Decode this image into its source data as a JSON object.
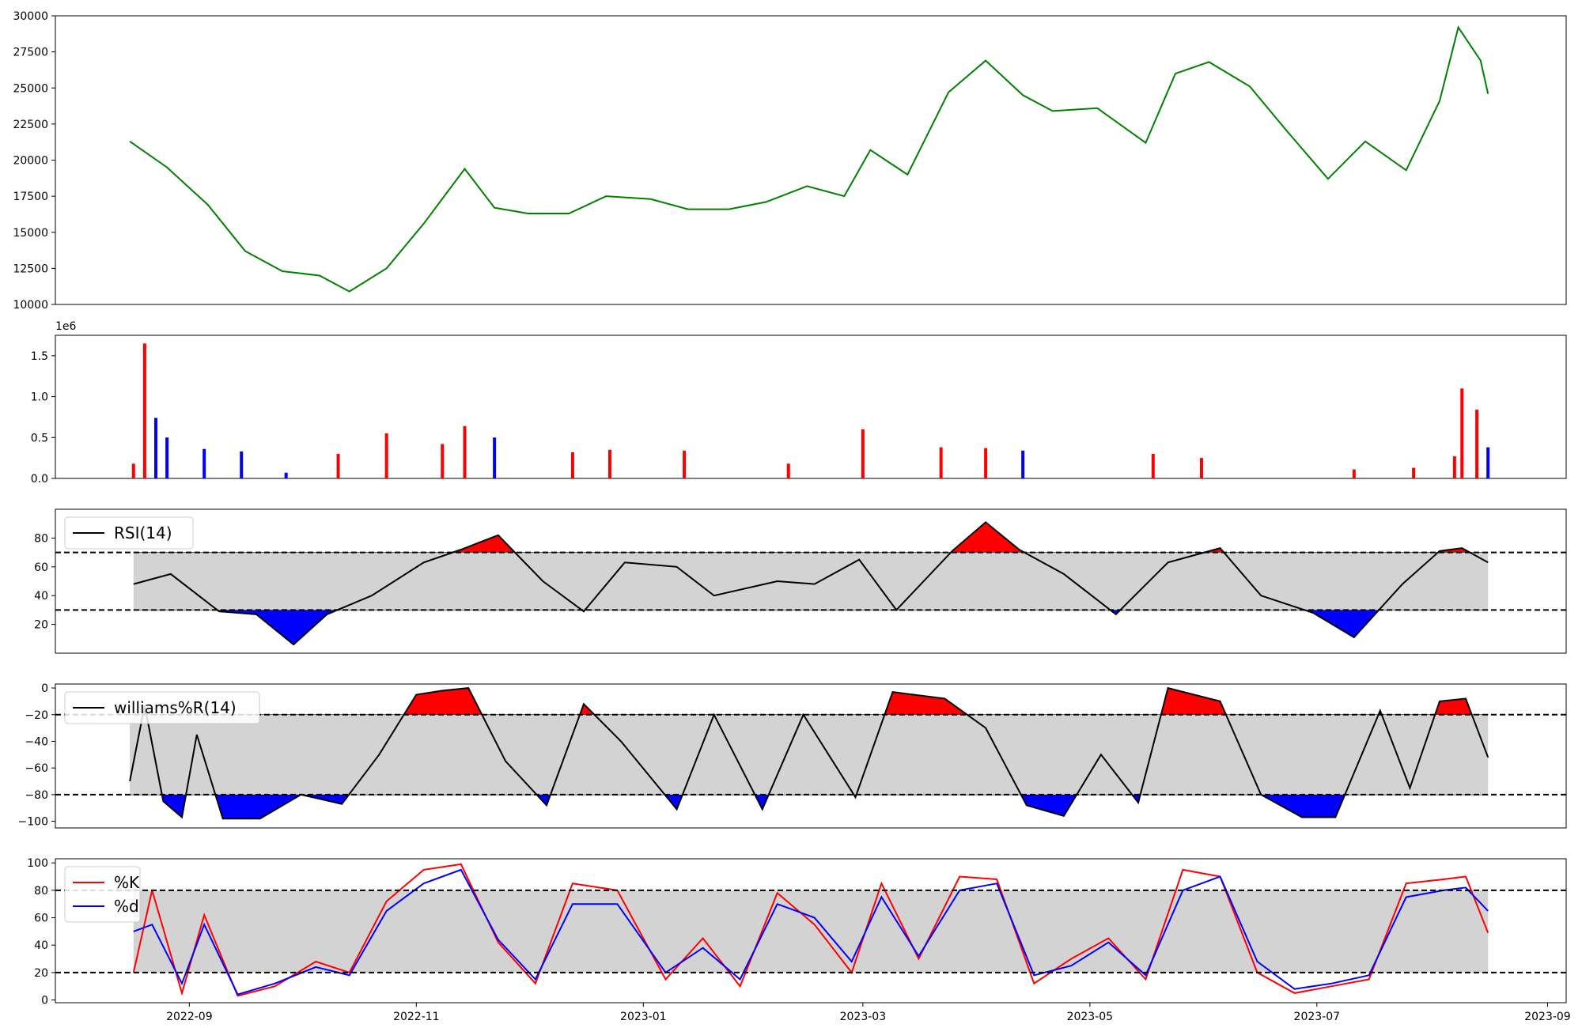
{
  "chart_data": [
    {
      "type": "line",
      "name": "price",
      "color": "#008000",
      "ylim": [
        10000,
        30000
      ],
      "yticks": [
        10000,
        12500,
        15000,
        17500,
        20000,
        22500,
        25000,
        27500,
        30000
      ],
      "x": [
        "2022-08-16",
        "2022-08-26",
        "2022-09-06",
        "2022-09-16",
        "2022-09-26",
        "2022-10-06",
        "2022-10-14",
        "2022-10-24",
        "2022-11-03",
        "2022-11-14",
        "2022-11-22",
        "2022-12-01",
        "2022-12-12",
        "2022-12-22",
        "2023-01-03",
        "2023-01-13",
        "2023-01-24",
        "2023-02-03",
        "2023-02-14",
        "2023-02-24",
        "2023-03-03",
        "2023-03-13",
        "2023-03-24",
        "2023-04-03",
        "2023-04-13",
        "2023-04-21",
        "2023-05-03",
        "2023-05-16",
        "2023-05-24",
        "2023-06-02",
        "2023-06-13",
        "2023-06-23",
        "2023-07-04",
        "2023-07-14",
        "2023-07-25",
        "2023-08-03",
        "2023-08-08",
        "2023-08-14",
        "2023-08-16"
      ],
      "values": [
        21300,
        19500,
        16900,
        13700,
        12300,
        12000,
        10900,
        12500,
        15600,
        19400,
        16700,
        16300,
        16300,
        17500,
        17300,
        16600,
        16600,
        17100,
        18200,
        17500,
        20700,
        19000,
        24700,
        26900,
        24500,
        23400,
        23600,
        21200,
        26000,
        26800,
        25100,
        22000,
        18700,
        21300,
        19300,
        24100,
        29200,
        26900,
        24600
      ]
    },
    {
      "type": "bar",
      "name": "volume",
      "multiplier": "1e6",
      "ylim": [
        0,
        1.75
      ],
      "yticks": [
        0.0,
        0.5,
        1.0,
        1.5
      ],
      "colors": {
        "up": "#ff0000",
        "down": "#0000ff"
      },
      "x": [
        "2022-08-17",
        "2022-08-20",
        "2022-08-23",
        "2022-08-26",
        "2022-09-05",
        "2022-09-15",
        "2022-09-27",
        "2022-10-11",
        "2022-10-24",
        "2022-11-08",
        "2022-11-14",
        "2022-11-22",
        "2022-12-13",
        "2022-12-23",
        "2023-01-12",
        "2023-02-09",
        "2023-03-01",
        "2023-03-22",
        "2023-04-03",
        "2023-04-13",
        "2023-05-18",
        "2023-05-31",
        "2023-07-11",
        "2023-07-27",
        "2023-08-07",
        "2023-08-09",
        "2023-08-13",
        "2023-08-16"
      ],
      "values": [
        0.18,
        1.65,
        0.74,
        0.5,
        0.36,
        0.33,
        0.07,
        0.3,
        0.55,
        0.42,
        0.64,
        0.5,
        0.32,
        0.35,
        0.34,
        0.18,
        0.6,
        0.38,
        0.37,
        0.34,
        0.3,
        0.25,
        0.11,
        0.13,
        0.27,
        1.1,
        0.84,
        0.38
      ],
      "direction": [
        "up",
        "up",
        "down",
        "down",
        "down",
        "down",
        "down",
        "up",
        "up",
        "up",
        "up",
        "down",
        "up",
        "up",
        "up",
        "up",
        "up",
        "up",
        "up",
        "down",
        "up",
        "up",
        "up",
        "up",
        "up",
        "up",
        "up",
        "down"
      ]
    },
    {
      "type": "line",
      "name": "rsi",
      "legend": "RSI(14)",
      "ylim": [
        0,
        100
      ],
      "yticks": [
        20,
        40,
        60,
        80
      ],
      "thresholds": [
        30,
        70
      ],
      "x": [
        "2022-08-17",
        "2022-08-27",
        "2022-09-09",
        "2022-09-19",
        "2022-09-29",
        "2022-10-08",
        "2022-10-20",
        "2022-11-03",
        "2022-11-13",
        "2022-11-23",
        "2022-12-05",
        "2022-12-16",
        "2022-12-27",
        "2023-01-10",
        "2023-01-20",
        "2023-02-06",
        "2023-02-16",
        "2023-02-28",
        "2023-03-10",
        "2023-03-25",
        "2023-04-03",
        "2023-04-12",
        "2023-04-24",
        "2023-05-08",
        "2023-05-22",
        "2023-06-05",
        "2023-06-16",
        "2023-06-30",
        "2023-07-11",
        "2023-07-24",
        "2023-08-03",
        "2023-08-09",
        "2023-08-16"
      ],
      "values": [
        48,
        55,
        29,
        27,
        6,
        27,
        40,
        63,
        72,
        82,
        50,
        29,
        63,
        60,
        40,
        50,
        48,
        65,
        30,
        71,
        91,
        72,
        55,
        27,
        63,
        73,
        40,
        28,
        11,
        48,
        71,
        73,
        63
      ]
    },
    {
      "type": "line",
      "name": "williams_r",
      "legend": "williams%R(14)",
      "ylim": [
        -105,
        3
      ],
      "yticks": [
        -100,
        -80,
        -60,
        -40,
        -20,
        0
      ],
      "thresholds": [
        -80,
        -20
      ],
      "x": [
        "2022-08-16",
        "2022-08-20",
        "2022-08-25",
        "2022-08-30",
        "2022-09-03",
        "2022-09-10",
        "2022-09-20",
        "2022-10-01",
        "2022-10-12",
        "2022-10-22",
        "2022-11-01",
        "2022-11-08",
        "2022-11-15",
        "2022-11-25",
        "2022-12-06",
        "2022-12-16",
        "2022-12-26",
        "2023-01-10",
        "2023-01-20",
        "2023-02-02",
        "2023-02-13",
        "2023-02-27",
        "2023-03-09",
        "2023-03-23",
        "2023-04-03",
        "2023-04-14",
        "2023-04-24",
        "2023-05-04",
        "2023-05-14",
        "2023-05-22",
        "2023-06-05",
        "2023-06-16",
        "2023-06-27",
        "2023-07-06",
        "2023-07-18",
        "2023-07-26",
        "2023-08-03",
        "2023-08-10",
        "2023-08-16"
      ],
      "values": [
        -70,
        -13,
        -85,
        -97,
        -35,
        -98,
        -98,
        -80,
        -87,
        -50,
        -5,
        -2,
        0,
        -55,
        -88,
        -12,
        -40,
        -91,
        -20,
        -91,
        -20,
        -82,
        -3,
        -8,
        -30,
        -88,
        -96,
        -50,
        -86,
        0,
        -10,
        -80,
        -97,
        -97,
        -17,
        -75,
        -10,
        -8,
        -52
      ]
    },
    {
      "type": "line",
      "name": "stochastic",
      "ylim": [
        -2,
        103
      ],
      "yticks": [
        0,
        20,
        40,
        60,
        80,
        100
      ],
      "thresholds": [
        20,
        80
      ],
      "xticks": [
        "2022-09",
        "2022-11",
        "2023-01",
        "2023-03",
        "2023-05",
        "2023-07",
        "2023-09"
      ],
      "x": [
        "2022-08-17",
        "2022-08-22",
        "2022-08-30",
        "2022-09-05",
        "2022-09-14",
        "2022-09-24",
        "2022-10-05",
        "2022-10-14",
        "2022-10-24",
        "2022-11-03",
        "2022-11-13",
        "2022-11-23",
        "2022-12-03",
        "2022-12-13",
        "2022-12-25",
        "2023-01-07",
        "2023-01-17",
        "2023-01-27",
        "2023-02-06",
        "2023-02-16",
        "2023-02-26",
        "2023-03-06",
        "2023-03-16",
        "2023-03-27",
        "2023-04-06",
        "2023-04-16",
        "2023-04-26",
        "2023-05-06",
        "2023-05-16",
        "2023-05-26",
        "2023-06-05",
        "2023-06-15",
        "2023-06-25",
        "2023-07-05",
        "2023-07-15",
        "2023-07-25",
        "2023-08-04",
        "2023-08-10",
        "2023-08-16"
      ],
      "series": [
        {
          "legend": "%K",
          "color": "#ff0000",
          "values": [
            20,
            80,
            5,
            62,
            3,
            10,
            28,
            20,
            72,
            95,
            99,
            42,
            12,
            85,
            80,
            15,
            45,
            10,
            78,
            55,
            20,
            85,
            30,
            90,
            88,
            12,
            30,
            45,
            15,
            95,
            90,
            20,
            5,
            10,
            15,
            85,
            88,
            90,
            49
          ]
        },
        {
          "legend": "%d",
          "color": "#0000ff",
          "values": [
            50,
            55,
            12,
            55,
            4,
            12,
            24,
            18,
            65,
            85,
            95,
            44,
            15,
            70,
            70,
            20,
            38,
            15,
            70,
            60,
            28,
            75,
            32,
            80,
            85,
            18,
            25,
            42,
            18,
            80,
            90,
            28,
            8,
            12,
            18,
            75,
            80,
            82,
            65
          ]
        }
      ]
    }
  ]
}
